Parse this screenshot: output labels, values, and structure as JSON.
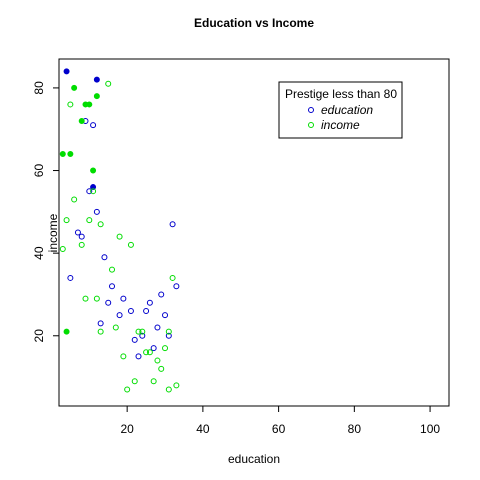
{
  "chart_data": {
    "type": "scatter",
    "title": "Education vs Income",
    "xlabel": "education",
    "ylabel": "income",
    "xlim": [
      2,
      105
    ],
    "ylim": [
      3,
      87
    ],
    "x_ticks": [
      20,
      40,
      60,
      80,
      100
    ],
    "y_ticks": [
      20,
      40,
      60,
      80
    ],
    "grid": false,
    "legend": {
      "title": "Prestige less than 80",
      "placement": "top-right",
      "entries": [
        {
          "label": "education",
          "color": "#0000cc"
        },
        {
          "label": "income",
          "color": "#00dd00"
        }
      ]
    },
    "series": [
      {
        "name": "education",
        "color": "#0000cc",
        "points": [
          {
            "x": 4,
            "y": 84,
            "filled": true
          },
          {
            "x": 12,
            "y": 82,
            "filled": true
          },
          {
            "x": 11,
            "y": 56,
            "filled": true
          },
          {
            "x": 9,
            "y": 72,
            "filled": false
          },
          {
            "x": 11,
            "y": 71,
            "filled": false
          },
          {
            "x": 10,
            "y": 55,
            "filled": false
          },
          {
            "x": 12,
            "y": 50,
            "filled": false
          },
          {
            "x": 7,
            "y": 45,
            "filled": false
          },
          {
            "x": 8,
            "y": 44,
            "filled": false
          },
          {
            "x": 32,
            "y": 47,
            "filled": false
          },
          {
            "x": 14,
            "y": 39,
            "filled": false
          },
          {
            "x": 5,
            "y": 34,
            "filled": false
          },
          {
            "x": 16,
            "y": 32,
            "filled": false
          },
          {
            "x": 33,
            "y": 32,
            "filled": false
          },
          {
            "x": 29,
            "y": 30,
            "filled": false
          },
          {
            "x": 19,
            "y": 29,
            "filled": false
          },
          {
            "x": 15,
            "y": 28,
            "filled": false
          },
          {
            "x": 26,
            "y": 28,
            "filled": false
          },
          {
            "x": 21,
            "y": 26,
            "filled": false
          },
          {
            "x": 25,
            "y": 26,
            "filled": false
          },
          {
            "x": 18,
            "y": 25,
            "filled": false
          },
          {
            "x": 30,
            "y": 25,
            "filled": false
          },
          {
            "x": 13,
            "y": 23,
            "filled": false
          },
          {
            "x": 28,
            "y": 22,
            "filled": false
          },
          {
            "x": 24,
            "y": 20,
            "filled": false
          },
          {
            "x": 31,
            "y": 20,
            "filled": false
          },
          {
            "x": 22,
            "y": 19,
            "filled": false
          },
          {
            "x": 27,
            "y": 17,
            "filled": false
          },
          {
            "x": 23,
            "y": 15,
            "filled": false
          }
        ]
      },
      {
        "name": "income",
        "color": "#00dd00",
        "points": [
          {
            "x": 6,
            "y": 80,
            "filled": true
          },
          {
            "x": 12,
            "y": 78,
            "filled": true
          },
          {
            "x": 9,
            "y": 76,
            "filled": true
          },
          {
            "x": 10,
            "y": 76,
            "filled": true
          },
          {
            "x": 8,
            "y": 72,
            "filled": true
          },
          {
            "x": 3,
            "y": 64,
            "filled": true
          },
          {
            "x": 5,
            "y": 64,
            "filled": true
          },
          {
            "x": 11,
            "y": 60,
            "filled": true
          },
          {
            "x": 4,
            "y": 21,
            "filled": true
          },
          {
            "x": 15,
            "y": 81,
            "filled": false
          },
          {
            "x": 5,
            "y": 76,
            "filled": false
          },
          {
            "x": 11,
            "y": 55,
            "filled": false
          },
          {
            "x": 6,
            "y": 53,
            "filled": false
          },
          {
            "x": 4,
            "y": 48,
            "filled": false
          },
          {
            "x": 10,
            "y": 48,
            "filled": false
          },
          {
            "x": 13,
            "y": 47,
            "filled": false
          },
          {
            "x": 18,
            "y": 44,
            "filled": false
          },
          {
            "x": 8,
            "y": 42,
            "filled": false
          },
          {
            "x": 21,
            "y": 42,
            "filled": false
          },
          {
            "x": 3,
            "y": 41,
            "filled": false
          },
          {
            "x": 16,
            "y": 36,
            "filled": false
          },
          {
            "x": 32,
            "y": 34,
            "filled": false
          },
          {
            "x": 9,
            "y": 29,
            "filled": false
          },
          {
            "x": 12,
            "y": 29,
            "filled": false
          },
          {
            "x": 13,
            "y": 21,
            "filled": false
          },
          {
            "x": 17,
            "y": 22,
            "filled": false
          },
          {
            "x": 23,
            "y": 21,
            "filled": false
          },
          {
            "x": 24,
            "y": 21,
            "filled": false
          },
          {
            "x": 31,
            "y": 21,
            "filled": false
          },
          {
            "x": 30,
            "y": 17,
            "filled": false
          },
          {
            "x": 25,
            "y": 16,
            "filled": false
          },
          {
            "x": 26,
            "y": 16,
            "filled": false
          },
          {
            "x": 19,
            "y": 15,
            "filled": false
          },
          {
            "x": 28,
            "y": 14,
            "filled": false
          },
          {
            "x": 29,
            "y": 12,
            "filled": false
          },
          {
            "x": 22,
            "y": 9,
            "filled": false
          },
          {
            "x": 27,
            "y": 9,
            "filled": false
          },
          {
            "x": 33,
            "y": 8,
            "filled": false
          },
          {
            "x": 20,
            "y": 7,
            "filled": false
          },
          {
            "x": 31,
            "y": 7,
            "filled": false
          }
        ]
      }
    ]
  }
}
